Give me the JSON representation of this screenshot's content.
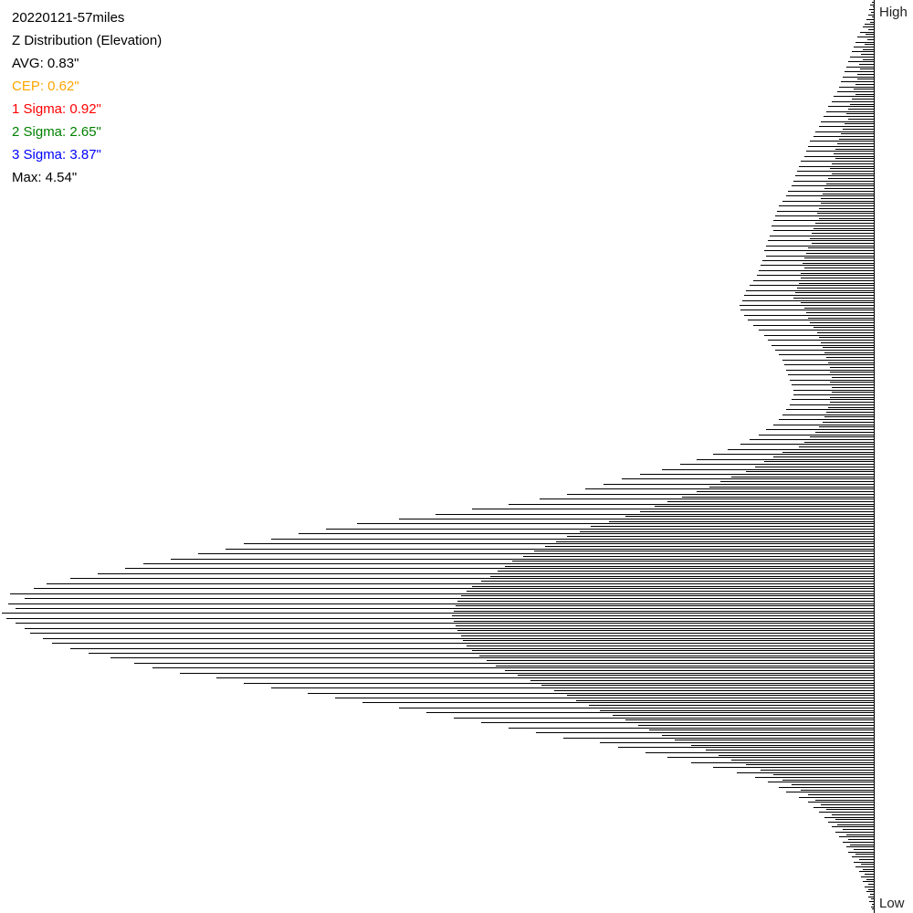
{
  "header": {
    "title": "20220121-57miles",
    "subtitle": "Z Distribution (Elevation)"
  },
  "stats": [
    {
      "label": "AVG: 0.83\"",
      "color": "#000000"
    },
    {
      "label": "CEP: 0.62\"",
      "color": "#ffa500"
    },
    {
      "label": "1 Sigma: 0.92\"",
      "color": "#ff0000"
    },
    {
      "label": "2 Sigma: 2.65\"",
      "color": "#008000"
    },
    {
      "label": "3 Sigma: 3.87\"",
      "color": "#0000ff"
    },
    {
      "label": "Max: 4.54\"",
      "color": "#000000"
    }
  ],
  "chart_data": {
    "type": "bar",
    "orientation": "horizontal",
    "bar_color": "#000000",
    "axis_top_label": "High",
    "axis_bottom_label": "Low",
    "grid": false,
    "values": [
      2,
      4,
      1,
      5,
      3,
      6,
      2,
      8,
      4,
      10,
      12,
      6,
      15,
      9,
      18,
      7,
      20,
      10,
      22,
      12,
      24,
      14,
      26,
      12,
      28,
      16,
      30,
      15,
      32,
      18,
      34,
      18,
      36,
      20,
      38,
      22,
      40,
      20,
      44,
      24,
      46,
      26,
      50,
      28,
      52,
      30,
      55,
      28,
      58,
      32,
      60,
      34,
      64,
      36,
      66,
      38,
      70,
      40,
      72,
      42,
      74,
      44,
      76,
      42,
      80,
      46,
      82,
      48,
      84,
      46,
      86,
      50,
      88,
      52,
      90,
      54,
      94,
      56,
      96,
      58,
      100,
      58,
      104,
      60,
      106,
      62,
      108,
      60,
      110,
      64,
      112,
      66,
      110,
      68,
      114,
      70,
      116,
      68,
      118,
      72,
      120,
      74,
      118,
      76,
      122,
      78,
      124,
      76,
      126,
      80,
      128,
      80,
      132,
      82,
      136,
      84,
      140,
      86,
      142,
      88,
      144,
      80,
      147,
      76,
      146,
      74,
      142,
      72,
      138,
      70,
      132,
      66,
      126,
      62,
      120,
      60,
      116,
      58,
      112,
      56,
      108,
      54,
      104,
      52,
      100,
      50,
      98,
      48,
      96,
      48,
      94,
      46,
      92,
      48,
      90,
      46,
      88,
      46,
      88,
      48,
      90,
      48,
      92,
      50,
      96,
      52,
      100,
      54,
      104,
      56,
      110,
      60,
      118,
      64,
      126,
      70,
      136,
      76,
      146,
      82,
      160,
      100,
      176,
      110,
      194,
      120,
      212,
      130,
      232,
      140,
      256,
      156,
      276,
      168,
      296,
      180,
      316,
      194,
      336,
      210,
      366,
      226,
      400,
      240,
      440,
      256,
      480,
      272,
      520,
      290,
      566,
      310,
      600,
      322,
      630,
      336,
      660,
      348,
      690,
      360,
      710,
      372,
      740,
      384,
      770,
      396,
      800,
      404,
      820,
      412,
      850,
      420,
      880,
      430,
      906,
      440,
      920,
      446,
      946,
      452,
      930,
      456,
      948,
      458,
      940,
      460,
      955,
      462,
      950,
      460,
      940,
      458,
      930,
      456,
      924,
      452,
      910,
      450,
      900,
      446,
      880,
      440,
      860,
      432,
      836,
      424,
      810,
      414,
      790,
      404,
      760,
      390,
      720,
      376,
      690,
      364,
      660,
      350,
      620,
      336,
      590,
      326,
      560,
      312,
      520,
      300,
      490,
      286,
      460,
      272,
      430,
      258,
      400,
      246,
      370,
      232,
      340,
      218,
      300,
      200,
      280,
      184,
      250,
      170,
      226,
      156,
      200,
      140,
      176,
      124,
      150,
      110,
      130,
      100,
      116,
      90,
      104,
      80,
      96,
      72,
      82,
      64,
      72,
      58,
      66,
      52,
      60,
      46,
      54,
      42,
      50,
      40,
      46,
      34,
      42,
      30,
      38,
      28,
      34,
      26,
      30,
      22,
      28,
      20,
      24,
      16,
      22,
      14,
      20,
      12,
      16,
      10,
      14,
      8,
      12,
      6,
      10,
      6,
      8,
      4,
      6,
      3,
      5,
      2,
      3,
      2
    ]
  }
}
